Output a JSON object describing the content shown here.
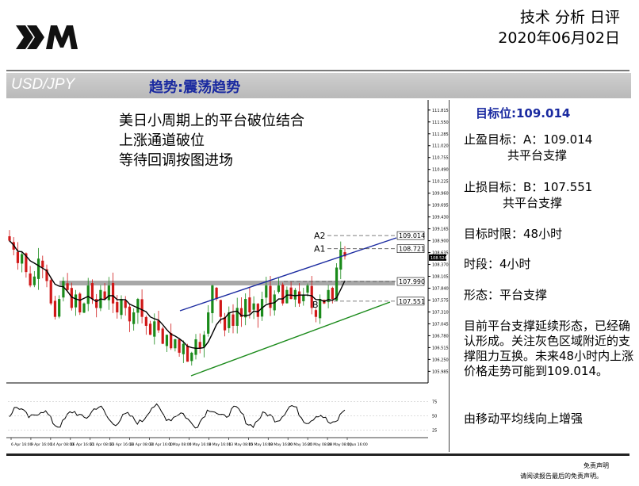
{
  "header": {
    "title": "技术 分析 日评",
    "date": "2020年06月02日"
  },
  "pair_bar": {
    "pair": "USD/JPY",
    "trend": "趋势:震荡趋势"
  },
  "chart_note": {
    "line1": "美日小周期上的平台破位结合",
    "line2": "上涨通道破位",
    "line3": "等待回调按图进场"
  },
  "side_panel": {
    "target": "目标位:109.014",
    "take_profit": "止盈目标：A：109.014",
    "take_profit_sub": "共平台支撑",
    "stop_loss": "止损目标：B：107.551",
    "stop_loss_sub": "共平台支撑",
    "time_limit": "目标时限：48小时",
    "period": "时段：4小时",
    "pattern": "形态：平台支撑",
    "analysis": "目前平台支撑延续形态，已经确认形成。关注灰色区域附近的支撑阻力互换。未来48小时内上涨价格走势可能到109.014。",
    "ma_note": "由移动平均线向上增强"
  },
  "disclaimer": {
    "line1": "免责声明",
    "line2": "请阅读报告最后的免责声明。"
  },
  "colors": {
    "trend_text": "#1a2aa0",
    "upper_channel": "#1a2aa0",
    "lower_channel": "#1a8a1a",
    "bull_candle": "#1a8a1a",
    "bear_candle": "#d01818",
    "zone": "#a8a8a8"
  },
  "chart_data": {
    "type": "candlestick",
    "symbol": "USD/JPY",
    "timeframe": "4 hours",
    "y_axis_labels": [
      "111.815",
      "111.550",
      "111.285",
      "111.020",
      "110.755",
      "110.490",
      "110.225",
      "109.960",
      "109.695",
      "109.430",
      "109.165",
      "108.900",
      "108.635",
      "108.370",
      "108.105",
      "107.840",
      "107.575",
      "107.310",
      "107.045",
      "106.780",
      "106.515",
      "106.250",
      "105.985"
    ],
    "ylim": [
      105.85,
      111.9
    ],
    "current_price": "108.524",
    "levels": [
      {
        "label": "A2",
        "value": 109.014,
        "tag": "109.014"
      },
      {
        "label": "A1",
        "value": 108.721,
        "tag": "108.721"
      },
      {
        "label": "",
        "value": 107.99,
        "tag": "107.990"
      },
      {
        "label": "B",
        "value": 107.551,
        "tag": "107.551"
      }
    ],
    "x_labels": [
      "6 Apr 16:00",
      "9 Apr 16:00",
      "14 Apr 08:00",
      "16 Apr 16:00",
      "21 Apr 08:00",
      "23 Apr 16:00",
      "28 Apr 08:00",
      "30 Apr 16:00",
      "1 May 08:00",
      "6 May 16:00",
      "8 May 16:00",
      "13 May 08:00",
      "15 May 16:00",
      "18 May 16:00",
      "20 May 16:00",
      "25 May 08:00",
      "28 May 08:00",
      "1 Jun 16:00"
    ],
    "close_path": [
      108.9,
      108.7,
      108.4,
      108.6,
      108.2,
      107.9,
      108.1,
      108.5,
      108.3,
      108.0,
      107.5,
      107.2,
      107.6,
      108.0,
      107.8,
      107.4,
      107.7,
      107.3,
      107.5,
      107.9,
      107.6,
      107.4,
      107.8,
      107.6,
      107.9,
      107.5,
      107.3,
      107.6,
      107.4,
      107.1,
      107.3,
      107.6,
      107.2,
      107.0,
      106.8,
      107.1,
      106.9,
      106.6,
      106.8,
      106.5,
      106.7,
      106.4,
      106.6,
      106.2,
      106.4,
      106.7,
      106.5,
      106.8,
      107.3,
      107.9,
      107.6,
      107.2,
      106.9,
      107.3,
      107.0,
      107.4,
      107.2,
      107.6,
      107.3,
      107.5,
      107.2,
      107.6,
      107.9,
      107.4,
      107.7,
      107.9,
      107.5,
      107.8,
      107.6,
      107.8,
      107.5,
      107.7,
      107.9,
      107.4,
      107.2,
      107.6,
      107.5,
      107.8,
      107.6,
      108.3,
      108.7,
      108.55
    ],
    "oscillator_labels": [
      "75",
      "50",
      "25"
    ]
  }
}
